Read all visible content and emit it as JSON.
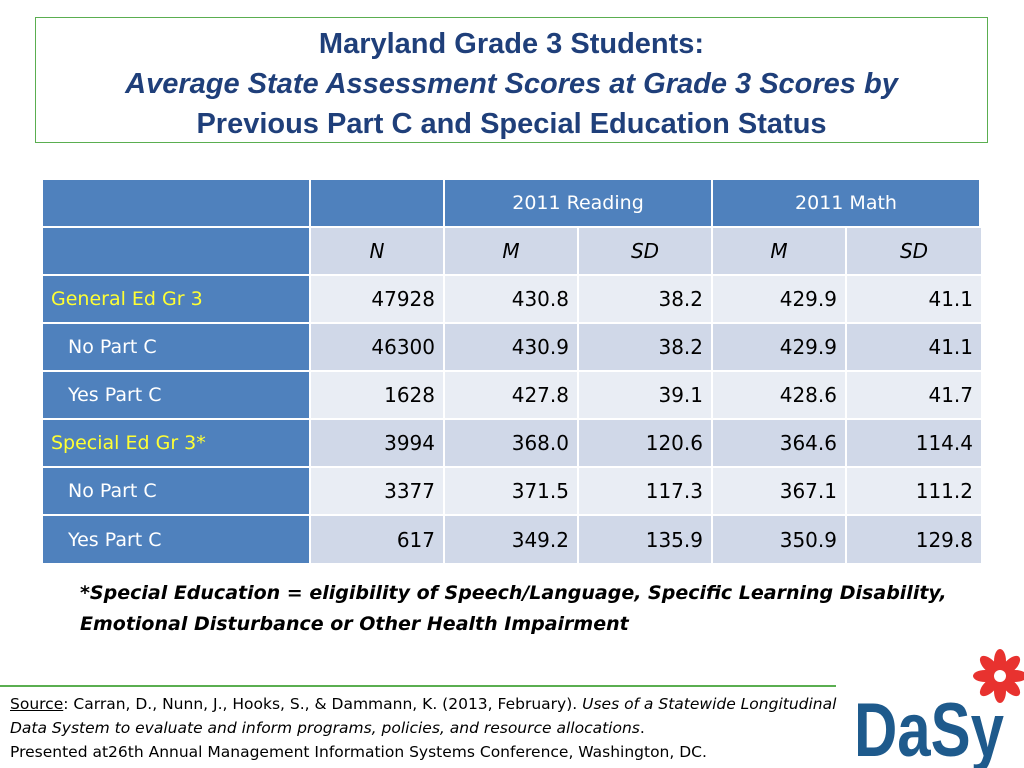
{
  "title": {
    "lines": [
      "Maryland Grade 3 Students:",
      "Average State Assessment Scores at Grade 3 Scores by",
      "Previous Part C and Special Education Status"
    ]
  },
  "table": {
    "column_groups": [
      "2011 Reading",
      "2011 Math"
    ],
    "subheaders": [
      "N",
      "M",
      "SD",
      "M",
      "SD"
    ],
    "groups": [
      {
        "label": "General Ed Gr 3",
        "values": [
          "47928",
          "430.8",
          "38.2",
          "429.9",
          "41.1"
        ],
        "subrows": [
          {
            "label": "No Part C",
            "values": [
              "46300",
              "430.9",
              "38.2",
              "429.9",
              "41.1"
            ]
          },
          {
            "label": "Yes Part C",
            "values": [
              "1628",
              "427.8",
              "39.1",
              "428.6",
              "41.7"
            ]
          }
        ]
      },
      {
        "label": "Special Ed Gr 3*",
        "values": [
          "3994",
          "368.0",
          "120.6",
          "364.6",
          "114.4"
        ],
        "subrows": [
          {
            "label": "No Part C",
            "values": [
              "3377",
              "371.5",
              "117.3",
              "367.1",
              "111.2"
            ]
          },
          {
            "label": "Yes Part C",
            "values": [
              "617",
              "349.2",
              "135.9",
              "350.9",
              "129.8"
            ]
          }
        ]
      }
    ]
  },
  "footnote": {
    "lines": [
      "*Special Education = eligibility of Speech/Language, Specific Learning Disability,",
      "Emotional Disturbance or Other Health Impairment"
    ]
  },
  "source": {
    "label": "Source",
    "text": ": Carran, D., Nunn, J., Hooks, S., & Dammann, K.  (2013, February). ",
    "work": "Uses of a Statewide Longitudinal Data System to evaluate and inform programs, policies, and resource allocations",
    "end": ".",
    "venue": "Presented at26th Annual Management Information Systems Conference, Washington, DC."
  },
  "logo": {
    "text": "DaSy"
  }
}
